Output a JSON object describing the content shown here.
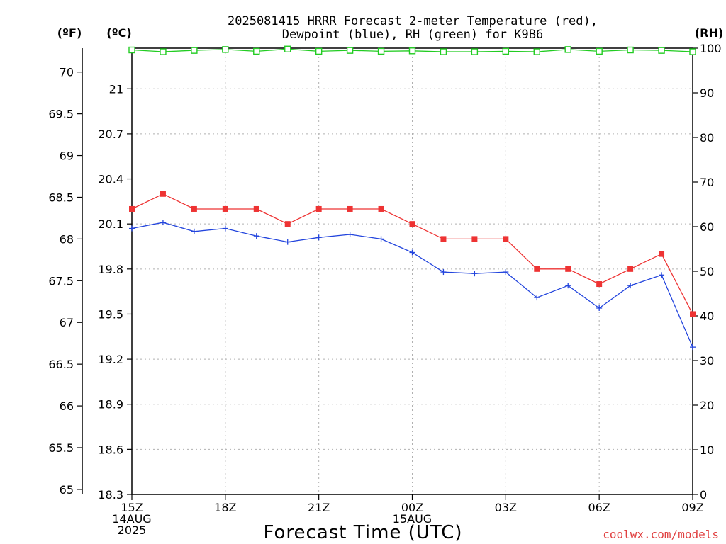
{
  "chart_data": {
    "type": "line",
    "title_lines": [
      "2025081415 HRRR Forecast 2-meter Temperature (red),",
      "Dewpoint (blue), RH (green) for K9B6"
    ],
    "unit_labels": {
      "fahrenheit": "(ºF)",
      "celsius": "(ºC)",
      "rh": "(RH)"
    },
    "xlabel": "Forecast Time (UTC)",
    "credit": "coolwx.com/models",
    "x_ticks": [
      {
        "hour": 0,
        "lines": [
          "15Z",
          "14AUG",
          "2025"
        ]
      },
      {
        "hour": 3,
        "lines": [
          "18Z"
        ]
      },
      {
        "hour": 6,
        "lines": [
          "21Z"
        ]
      },
      {
        "hour": 9,
        "lines": [
          "00Z",
          "15AUG"
        ]
      },
      {
        "hour": 12,
        "lines": [
          "03Z"
        ]
      },
      {
        "hour": 15,
        "lines": [
          "06Z"
        ]
      },
      {
        "hour": 18,
        "lines": [
          "09Z"
        ]
      }
    ],
    "xlim": [
      0,
      18
    ],
    "y_celsius": {
      "ticks": [
        "18.3",
        "18.6",
        "18.9",
        "19.2",
        "19.5",
        "19.8",
        "20.1",
        "20.4",
        "20.7",
        "21"
      ],
      "lim": [
        18.3,
        21.27
      ]
    },
    "y_fahrenheit": {
      "ticks": [
        "65",
        "65.5",
        "66",
        "66.5",
        "67",
        "67.5",
        "68",
        "68.5",
        "69",
        "69.5",
        "70"
      ]
    },
    "y_rh": {
      "ticks": [
        "0",
        "10",
        "20",
        "30",
        "40",
        "50",
        "60",
        "70",
        "80",
        "90",
        "100"
      ],
      "lim": [
        0,
        100
      ]
    },
    "grid": true,
    "series": [
      {
        "name": "Temperature",
        "color": "#ee3333",
        "marker": "filled-square",
        "x": [
          0,
          1,
          2,
          3,
          4,
          5,
          6,
          7,
          8,
          9,
          10,
          11,
          12,
          13,
          14,
          15,
          16,
          17,
          18
        ],
        "values": [
          20.2,
          20.3,
          20.2,
          20.2,
          20.2,
          20.1,
          20.2,
          20.2,
          20.2,
          20.1,
          20.0,
          20.0,
          20.0,
          19.8,
          19.8,
          19.7,
          19.8,
          19.9,
          19.5
        ]
      },
      {
        "name": "Dewpoint",
        "color": "#2244dd",
        "marker": "plus",
        "x": [
          0,
          1,
          2,
          3,
          4,
          5,
          6,
          7,
          8,
          9,
          10,
          11,
          12,
          13,
          14,
          15,
          16,
          17,
          18
        ],
        "values": [
          20.07,
          20.11,
          20.05,
          20.07,
          20.02,
          19.98,
          20.01,
          20.03,
          20.0,
          19.91,
          19.78,
          19.77,
          19.78,
          19.61,
          19.69,
          19.54,
          19.69,
          19.76,
          19.28
        ]
      },
      {
        "name": "RH",
        "color": "#22cc22",
        "marker": "open-square",
        "axis": "rh",
        "x": [
          0,
          1,
          2,
          3,
          4,
          5,
          6,
          7,
          8,
          9,
          10,
          11,
          12,
          13,
          14,
          15,
          16,
          17,
          18
        ],
        "values": [
          99.6,
          99.2,
          99.5,
          99.7,
          99.3,
          99.8,
          99.3,
          99.5,
          99.3,
          99.4,
          99.2,
          99.2,
          99.3,
          99.2,
          99.7,
          99.3,
          99.6,
          99.5,
          99.2
        ]
      }
    ]
  }
}
